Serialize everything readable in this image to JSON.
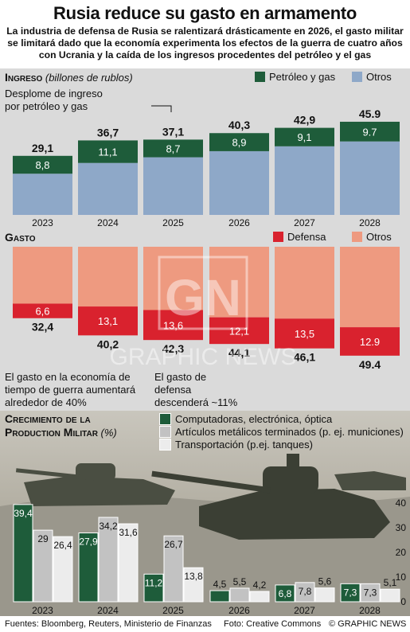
{
  "header": {
    "title": "Rusia reduce su gasto en armamento",
    "subtitle": "La industria de defensa de Rusia se ralentizará drásticamente en 2026, el gasto militar se limitará dado que la economía experimenta los efectos de la guerra de cuatro años con Ucrania y la caída de los ingresos procedentes del petróleo y el gas"
  },
  "income": {
    "heading": "Ingreso",
    "unit": "(billones de rublos)",
    "legend": [
      {
        "label": "Petróleo y gas",
        "color": "#1e5c3a"
      },
      {
        "label": "Otros",
        "color": "#8ea8c8"
      }
    ],
    "annotation": "Desplome de ingreso por petróleo y gas"
  },
  "spending": {
    "heading": "Gasto",
    "legend": [
      {
        "label": "Defensa",
        "color": "#d9222e"
      },
      {
        "label": "Otros",
        "color": "#ee9a80"
      }
    ],
    "note_left": "El gasto en la economía de tiempo de guerra aumentará alrededor de 40%",
    "note_right": "El gasto de defensa descenderá ~11%"
  },
  "growth": {
    "heading": "Crecimiento de la Production Militar",
    "unit": "(%)",
    "legend": [
      {
        "label": "Computadoras, electrónica, óptica",
        "color": "#1e5c3a"
      },
      {
        "label": "Artículos metálicos terminados (p. ej. municiones)",
        "color": "#c2c2c2"
      },
      {
        "label": "Transportación (p.ej. tanques)",
        "color": "#ececec"
      }
    ],
    "axis_ticks": [
      "40",
      "30",
      "20",
      "10",
      "0"
    ]
  },
  "footer": {
    "sources": "Fuentes: Bloomberg, Reuters, Ministerio de Finanzas",
    "photo": "Foto: Creative Commons",
    "brand": "© GRAPHIC NEWS"
  },
  "watermark": "GRAPHIC NEWS",
  "chart_data": [
    {
      "type": "bar",
      "title": "Ingreso",
      "ylabel": "billones de rublos",
      "categories": [
        "2023",
        "2024",
        "2025",
        "2026",
        "2027",
        "2028"
      ],
      "series": [
        {
          "name": "Petróleo y gas",
          "values": [
            8.8,
            11.1,
            8.7,
            8.9,
            9.1,
            9.7
          ]
        },
        {
          "name": "Otros",
          "values": [
            20.3,
            25.6,
            28.4,
            31.4,
            33.8,
            36.2
          ]
        }
      ],
      "totals": [
        "29,1",
        "36,7",
        "37,1",
        "40,3",
        "42,9",
        "45.9"
      ],
      "series_labels": [
        "8,8",
        "11,1",
        "8,7",
        "8,9",
        "9,1",
        "9.7"
      ],
      "stacked": true
    },
    {
      "type": "bar",
      "title": "Gasto",
      "categories": [
        "2023",
        "2024",
        "2025",
        "2026",
        "2027",
        "2028"
      ],
      "series": [
        {
          "name": "Defensa",
          "values": [
            6.6,
            13.1,
            13.6,
            12.1,
            13.5,
            12.9
          ]
        },
        {
          "name": "Otros",
          "values": [
            25.8,
            27.1,
            28.7,
            32.0,
            32.6,
            36.5
          ]
        }
      ],
      "totals": [
        "32,4",
        "40,2",
        "42,3",
        "44,1",
        "46,1",
        "49.4"
      ],
      "series_labels": [
        "6,6",
        "13,1",
        "13,6",
        "12,1",
        "13,5",
        "12.9"
      ],
      "stacked": true,
      "direction": "downward"
    },
    {
      "type": "bar",
      "title": "Crecimiento de la Production Militar",
      "ylabel": "%",
      "ylim": [
        0,
        40
      ],
      "categories": [
        "2023",
        "2024",
        "2025",
        "2026",
        "2027",
        "2028"
      ],
      "series": [
        {
          "name": "Computadoras, electrónica, óptica",
          "values": [
            39.4,
            27.9,
            11.2,
            4.5,
            6.8,
            7.3
          ],
          "labels": [
            "39,4",
            "27,9",
            "11,2",
            "4,5",
            "6,8",
            "7,3"
          ]
        },
        {
          "name": "Artículos metálicos terminados (p. ej. municiones)",
          "values": [
            29,
            34.2,
            26.7,
            5.5,
            7.8,
            7.3
          ],
          "labels": [
            "29",
            "34,2",
            "26,7",
            "5,5",
            "7,8",
            "7,3"
          ]
        },
        {
          "name": "Transportación (p.ej. tanques)",
          "values": [
            26.4,
            31.6,
            13.8,
            4.2,
            5.6,
            5.1
          ],
          "labels": [
            "26,4",
            "31,6",
            "13,8",
            "4,2",
            "5,6",
            "5,1"
          ]
        }
      ]
    }
  ]
}
